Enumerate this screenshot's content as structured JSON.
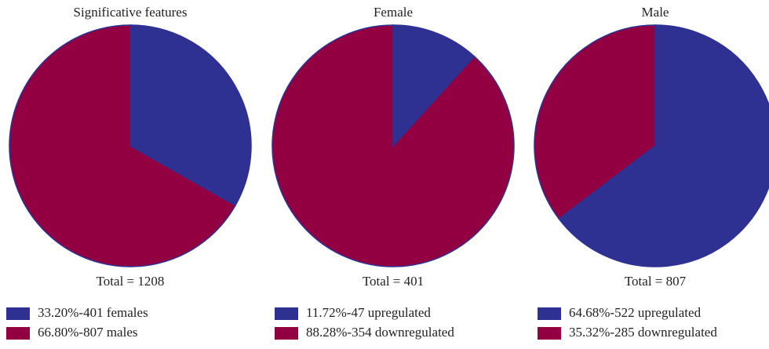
{
  "chart_data": [
    {
      "type": "pie",
      "title": "Significative features",
      "total_label": "Total = 1208",
      "labels": [
        "33.20%-401 females",
        "66.80%-807 males"
      ],
      "values": [
        33.2,
        66.8
      ],
      "colors": [
        "#2e3192",
        "#930042"
      ]
    },
    {
      "type": "pie",
      "title": "Female",
      "total_label": "Total = 401",
      "labels": [
        "11.72%-47 upregulated",
        "88.28%-354 downregulated"
      ],
      "values": [
        11.72,
        88.28
      ],
      "colors": [
        "#2e3192",
        "#930042"
      ]
    },
    {
      "type": "pie",
      "title": "Male",
      "total_label": "Total = 807",
      "labels": [
        "64.68%-522 upregulated",
        "35.32%-285 downregulated"
      ],
      "values": [
        64.68,
        35.32
      ],
      "colors": [
        "#2e3192",
        "#930042"
      ]
    }
  ]
}
